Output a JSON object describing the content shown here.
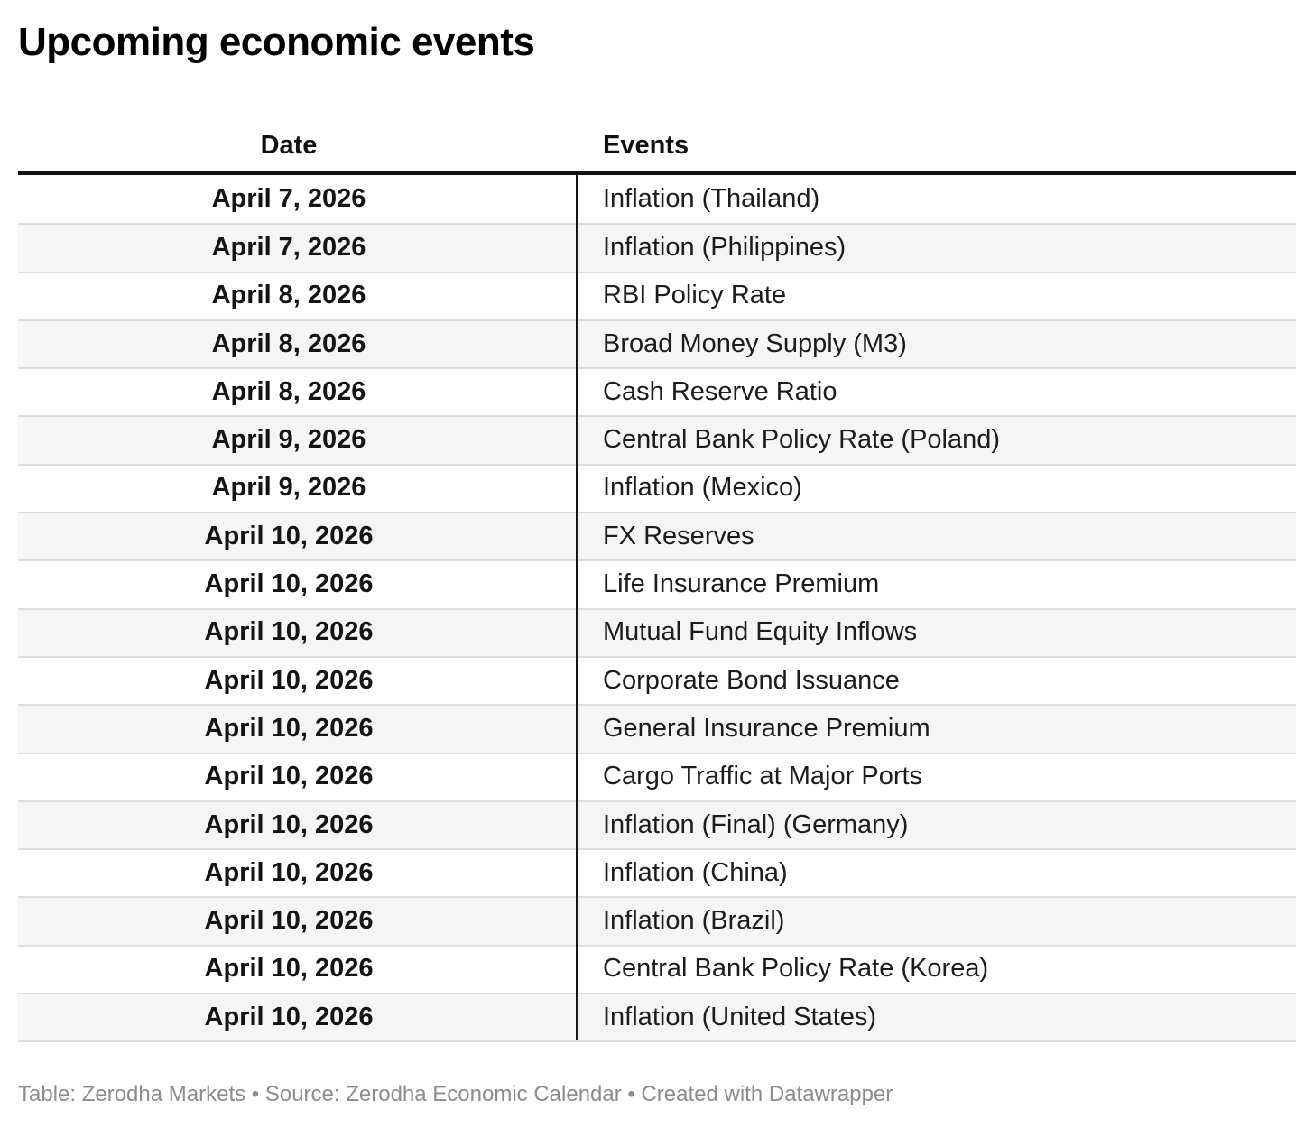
{
  "page": {
    "title": "Upcoming economic events",
    "footer": "Table: Zerodha Markets • Source: Zerodha Economic Calendar • Created with Datawrapper"
  },
  "chart_data": {
    "type": "table",
    "title": "Upcoming economic events",
    "columns": [
      "Date",
      "Events"
    ],
    "rows": [
      {
        "date": "April 7, 2026",
        "event": "Inflation (Thailand)"
      },
      {
        "date": "April 7, 2026",
        "event": "Inflation (Philippines)"
      },
      {
        "date": "April 8, 2026",
        "event": "RBI Policy Rate"
      },
      {
        "date": "April 8, 2026",
        "event": "Broad Money Supply (M3)"
      },
      {
        "date": "April 8, 2026",
        "event": "Cash Reserve Ratio"
      },
      {
        "date": "April 9, 2026",
        "event": "Central Bank Policy Rate (Poland)"
      },
      {
        "date": "April 9, 2026",
        "event": "Inflation (Mexico)"
      },
      {
        "date": "April 10, 2026",
        "event": "FX Reserves"
      },
      {
        "date": "April 10, 2026",
        "event": "Life Insurance Premium"
      },
      {
        "date": "April 10, 2026",
        "event": "Mutual Fund Equity Inflows"
      },
      {
        "date": "April 10, 2026",
        "event": "Corporate Bond Issuance"
      },
      {
        "date": "April 10, 2026",
        "event": "General Insurance Premium"
      },
      {
        "date": "April 10, 2026",
        "event": "Cargo Traffic at Major Ports"
      },
      {
        "date": "April 10, 2026",
        "event": "Inflation (Final) (Germany)"
      },
      {
        "date": "April 10, 2026",
        "event": "Inflation (China)"
      },
      {
        "date": "April 10, 2026",
        "event": "Inflation (Brazil)"
      },
      {
        "date": "April 10, 2026",
        "event": "Central Bank Policy Rate (Korea)"
      },
      {
        "date": "April 10, 2026",
        "event": "Inflation (United States)"
      }
    ],
    "layout": {
      "striping": "alternate rows, odd white / even light gray",
      "date_column_align": "center-bold",
      "events_column_align": "left"
    }
  },
  "colors": {
    "background": "#ffffff",
    "title_text": "#000000",
    "cell_text": "#1c1c1c",
    "stripe": "#f5f5f5",
    "row_separator": "#dedede",
    "header_rule": "#111111",
    "column_divider": "#161616",
    "footer_text": "#8c8c8c"
  }
}
